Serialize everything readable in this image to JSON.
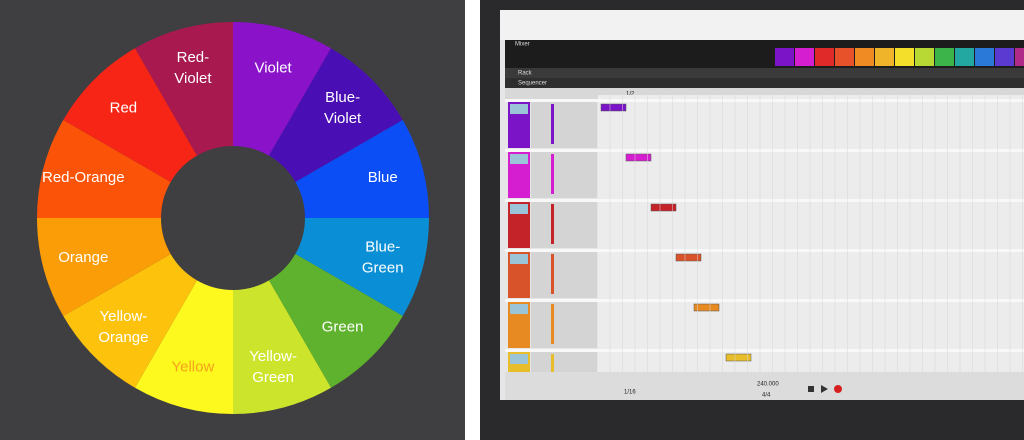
{
  "color_wheel": {
    "segments": [
      {
        "lines": [
          "Violet"
        ],
        "color": "#8a12c8",
        "text_color": "#ffffff"
      },
      {
        "lines": [
          "Blue-",
          "Violet"
        ],
        "color": "#4a0fb4",
        "text_color": "#ffffff"
      },
      {
        "lines": [
          "Blue"
        ],
        "color": "#0b4ef5",
        "text_color": "#ffffff"
      },
      {
        "lines": [
          "Blue-",
          "Green"
        ],
        "color": "#0a8fd6",
        "text_color": "#ffffff"
      },
      {
        "lines": [
          "Green"
        ],
        "color": "#5fb22e",
        "text_color": "#ffffff"
      },
      {
        "lines": [
          "Yellow-",
          "Green"
        ],
        "color": "#cde42c",
        "text_color": "#ffffff"
      },
      {
        "lines": [
          "Yellow"
        ],
        "color": "#fdf91e",
        "text_color": "#f5a21c"
      },
      {
        "lines": [
          "Yellow-",
          "Orange"
        ],
        "color": "#fcc20c",
        "text_color": "#ffffff"
      },
      {
        "lines": [
          "Orange"
        ],
        "color": "#fb9d06",
        "text_color": "#ffffff"
      },
      {
        "lines": [
          "Red-Orange"
        ],
        "color": "#fb5408",
        "text_color": "#ffffff"
      },
      {
        "lines": [
          "Red"
        ],
        "color": "#f62516",
        "text_color": "#ffffff"
      },
      {
        "lines": [
          "Red-",
          "Violet"
        ],
        "color": "#a8194f",
        "text_color": "#ffffff"
      }
    ]
  },
  "daw": {
    "mixer": "Mixer",
    "rack": "Rack",
    "sequencer": "Sequencer",
    "snap": "1/2",
    "quantize": "1/16",
    "tempo": "240.000",
    "signature": "4/4",
    "tracks": [
      {
        "color": "#7a14c6"
      },
      {
        "color": "#d41ed0"
      },
      {
        "color": "#c4232a"
      },
      {
        "color": "#d9532a"
      },
      {
        "color": "#e88a22"
      },
      {
        "color": "#e7bd2a"
      }
    ]
  }
}
